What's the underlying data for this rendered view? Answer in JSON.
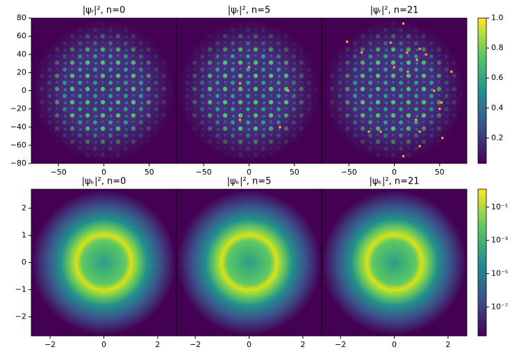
{
  "chart_data": [
    {
      "type": "heatmap",
      "title": "|ψᵣ|², n=0",
      "xlim": [
        -80,
        80
      ],
      "ylim": [
        -80,
        80
      ],
      "xticks": [
        -50,
        0,
        50
      ],
      "yticks": [
        -80,
        -60,
        -40,
        -20,
        0,
        20,
        40,
        60,
        80
      ]
    },
    {
      "type": "heatmap",
      "title": "|ψᵣ|², n=5",
      "xlim": [
        -80,
        80
      ],
      "ylim": [
        -80,
        80
      ],
      "xticks": [
        -50,
        0,
        50
      ],
      "points": {
        "color": "#ff9f1a",
        "x": [
          0,
          -10,
          43,
          -10,
          34
        ],
        "y": [
          26,
          8,
          0,
          -32,
          -40
        ]
      }
    },
    {
      "type": "heatmap",
      "title": "|ψᵣ|², n=21",
      "xlim": [
        -80,
        80
      ],
      "ylim": [
        -80,
        80
      ],
      "xticks": [
        -50,
        0,
        50
      ],
      "points": {
        "color": "#ff9f1a",
        "x": [
          10,
          -52,
          -4,
          28,
          -36,
          14,
          35,
          25,
          0,
          15,
          63,
          44,
          52,
          50,
          24,
          -28,
          -15,
          28,
          53,
          28,
          10
        ],
        "y": [
          74,
          54,
          53,
          46,
          42,
          42,
          40,
          34,
          26,
          21,
          21,
          0,
          -13,
          -20,
          -32,
          -45,
          -45,
          -45,
          -52,
          -61,
          -72
        ]
      },
      "colorbar": {
        "clim": [
          0.03,
          1.0
        ],
        "log": false,
        "ticks": [
          0.2,
          0.4,
          0.6,
          0.8,
          {
            "value": 1.0,
            "label": "1.0"
          }
        ]
      }
    },
    {
      "type": "heatmap",
      "title": "|ψₖ|², n=0",
      "xlim": [
        -2.7,
        2.7
      ],
      "ylim": [
        -2.7,
        2.7
      ],
      "xticks": [
        -2,
        0,
        2
      ],
      "yticks": [
        -2,
        -1,
        0,
        1,
        2
      ]
    },
    {
      "type": "heatmap",
      "title": "|ψₖ|², n=5",
      "xlim": [
        -2.7,
        2.7
      ],
      "ylim": [
        -2.7,
        2.7
      ],
      "xticks": [
        -2,
        0,
        2
      ]
    },
    {
      "type": "heatmap",
      "title": "|ψₖ|², n=21",
      "xlim": [
        -2.7,
        2.7
      ],
      "ylim": [
        -2.7,
        2.7
      ],
      "xticks": [
        -2,
        0,
        2
      ],
      "colorbar": {
        "clim": [
          1.8e-09,
          1.2
        ],
        "log": true,
        "ticks": [
          {
            "value": 1e-07,
            "label": "10⁻⁷"
          },
          {
            "value": 1e-05,
            "label": "10⁻⁵"
          },
          {
            "value": 0.001,
            "label": "10⁻³"
          },
          {
            "value": 0.1,
            "label": "10⁻¹"
          }
        ]
      }
    }
  ]
}
